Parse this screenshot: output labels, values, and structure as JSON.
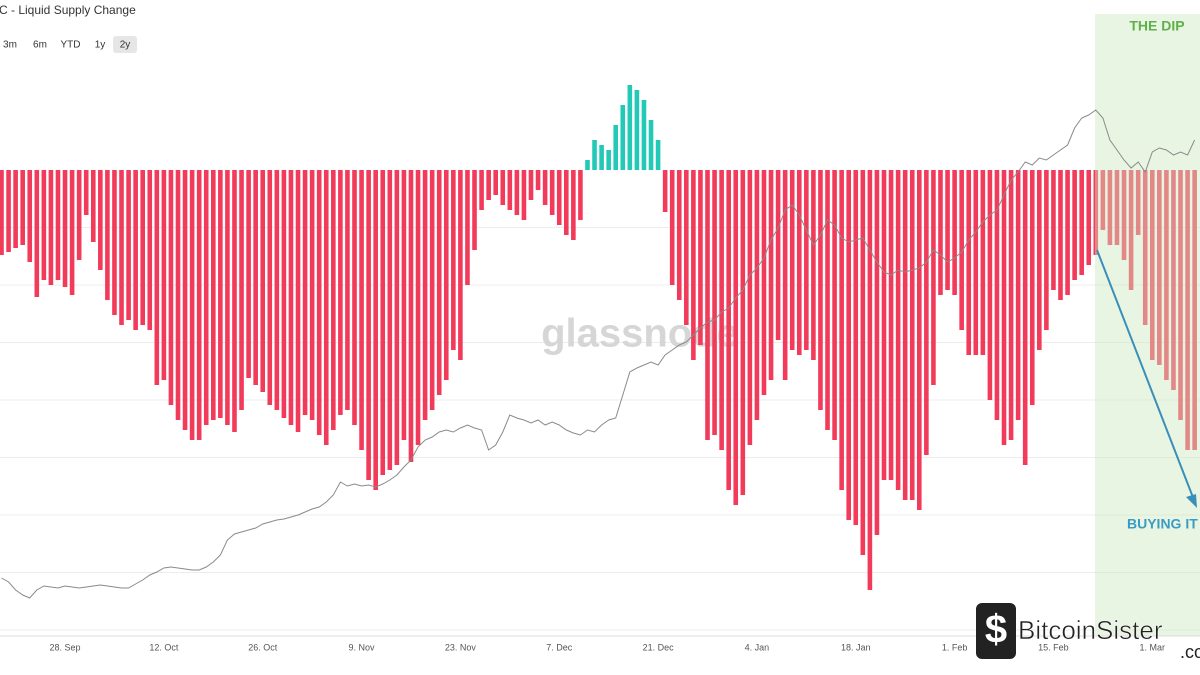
{
  "chart_data": {
    "type": "bar",
    "title": "C - Liquid Supply Change",
    "range_buttons": [
      "3m",
      "6m",
      "YTD",
      "1y",
      "2y"
    ],
    "selected_range": "2y",
    "categories": [
      null,
      null,
      null,
      null,
      null,
      null,
      null,
      null,
      null,
      "28. Sep",
      null,
      null,
      null,
      null,
      null,
      null,
      null,
      null,
      null,
      null,
      null,
      null,
      null,
      "12. Oct",
      null,
      null,
      null,
      null,
      null,
      null,
      null,
      null,
      null,
      null,
      null,
      null,
      null,
      "26. Oct",
      null,
      null,
      null,
      null,
      null,
      null,
      null,
      null,
      null,
      null,
      null,
      null,
      null,
      "9. Nov",
      null,
      null,
      null,
      null,
      null,
      null,
      null,
      null,
      null,
      null,
      null,
      null,
      null,
      "23. Nov",
      null,
      null,
      null,
      null,
      null,
      null,
      null,
      null,
      null,
      null,
      null,
      null,
      null,
      "7. Dec",
      null,
      null,
      null,
      null,
      null,
      null,
      null,
      null,
      null,
      null,
      null,
      null,
      null,
      "21. Dec",
      null,
      null,
      null,
      null,
      null,
      null,
      null,
      null,
      null,
      null,
      null,
      null,
      null,
      "4. Jan",
      null,
      null,
      null,
      null,
      null,
      null,
      null,
      null,
      null,
      null,
      null,
      null,
      null,
      "18. Jan",
      null,
      null,
      null,
      null,
      null,
      null,
      null,
      null,
      null,
      null,
      null,
      null,
      null,
      "1. Feb",
      null,
      null,
      null,
      null,
      null,
      null,
      null,
      null,
      null,
      null,
      null,
      null,
      null,
      "15. Feb",
      null,
      null,
      null,
      null,
      null,
      null,
      null,
      null,
      null,
      null,
      null,
      null,
      null,
      "1. Mar",
      null,
      null,
      null,
      null,
      null,
      null
    ],
    "series": [
      {
        "type": "bar",
        "positive_color": "#22c9b7",
        "negative_color": "#f23b5a",
        "values": [
          -85,
          -82,
          -78,
          -75,
          -92,
          -127,
          -110,
          -115,
          -110,
          -117,
          -125,
          -90,
          -45,
          -72,
          -100,
          -130,
          -145,
          -155,
          -150,
          -160,
          -155,
          -160,
          -215,
          -210,
          -235,
          -250,
          -260,
          -270,
          -270,
          -255,
          -250,
          -248,
          -255,
          -262,
          -240,
          -208,
          -215,
          -222,
          -235,
          -240,
          -248,
          -255,
          -262,
          -245,
          -250,
          -265,
          -275,
          -260,
          -245,
          -240,
          -255,
          -280,
          -310,
          -320,
          -305,
          -300,
          -295,
          -270,
          -292,
          -275,
          -250,
          -240,
          -225,
          -210,
          -180,
          -190,
          -115,
          -80,
          -40,
          -30,
          -25,
          -35,
          -40,
          -45,
          -50,
          -30,
          -20,
          -35,
          -45,
          -55,
          -65,
          -70,
          -50,
          10,
          30,
          25,
          20,
          45,
          65,
          85,
          80,
          70,
          50,
          30,
          -42,
          -115,
          -130,
          -155,
          -190,
          -175,
          -270,
          -265,
          -280,
          -320,
          -335,
          -325,
          -275,
          -250,
          -225,
          -210,
          -170,
          -210,
          -180,
          -185,
          -180,
          -190,
          -240,
          -260,
          -270,
          -320,
          -350,
          -355,
          -385,
          -420,
          -365,
          -310,
          -310,
          -320,
          -330,
          -330,
          -340,
          -285,
          -215,
          -125,
          -120,
          -125,
          -160,
          -185,
          -185,
          -185,
          -230,
          -250,
          -275,
          -270,
          -250,
          -295,
          -235,
          -180,
          -160,
          -120,
          -130,
          -125,
          -110,
          -105,
          -95,
          -85,
          -60,
          -75,
          -75,
          -90,
          -120,
          -65,
          -155,
          -190,
          -195,
          -210,
          -220,
          -250,
          -280,
          -280
        ]
      },
      {
        "type": "line",
        "axis": "y2",
        "color": "#8a8a8a",
        "values": [
          62,
          58,
          50,
          45,
          42,
          50,
          54,
          53,
          52,
          54,
          53,
          52,
          53,
          54,
          55,
          54,
          53,
          52,
          52,
          56,
          60,
          65,
          68,
          72,
          73,
          72,
          71,
          70,
          70,
          73,
          78,
          85,
          100,
          106,
          108,
          110,
          112,
          116,
          118,
          120,
          121,
          123,
          125,
          128,
          131,
          133,
          138,
          145,
          158,
          154,
          156,
          154,
          155,
          153,
          156,
          160,
          165,
          173,
          180,
          193,
          200,
          203,
          208,
          210,
          208,
          212,
          215,
          212,
          210,
          190,
          195,
          208,
          225,
          222,
          220,
          217,
          220,
          215,
          218,
          215,
          210,
          207,
          205,
          210,
          208,
          215,
          220,
          222,
          245,
          268,
          272,
          275,
          278,
          275,
          285,
          290,
          295,
          298,
          305,
          312,
          318,
          320,
          328,
          332,
          342,
          350,
          365,
          372,
          382,
          400,
          412,
          430,
          435,
          425,
          410,
          395,
          405,
          420,
          415,
          402,
          398,
          400,
          402,
          390,
          378,
          368,
          365,
          370,
          368,
          370,
          372,
          378,
          390,
          385,
          378,
          382,
          388,
          400,
          408,
          418,
          425,
          430,
          445,
          460,
          468,
          478,
          475,
          482,
          480,
          485,
          490,
          495,
          512,
          522,
          525,
          530,
          522,
          500,
          490,
          480,
          472,
          478,
          468,
          488,
          492,
          490,
          485,
          488,
          485,
          500
        ]
      }
    ],
    "ylim": [
      -470,
      156
    ],
    "yticks": [
      -460,
      -402.5,
      -345,
      -287.5,
      -230,
      -172.5,
      -115,
      -57.5
    ],
    "y2lim": [
      0,
      626
    ],
    "grid": true,
    "highlight_label": "THE DIP",
    "highlight_color": "#cfe9c2",
    "annotation": "BUYING IT",
    "annotation_color": "#3a9cc4",
    "watermark": "glassnode",
    "logo_text": "BitcoinSister",
    "logo_suffix": ".co"
  }
}
